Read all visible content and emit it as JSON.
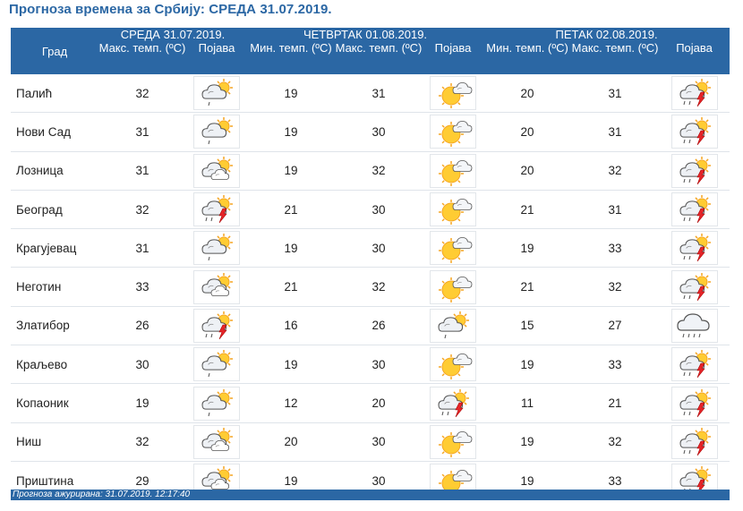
{
  "title": "Прогноза времена за Србију: СРЕДА  31.07.2019.",
  "header": {
    "city_label": "Град",
    "days": [
      {
        "label": "СРЕДА  31.07.2019.",
        "cols": [
          "Макс. темп. (ºC)",
          "Појава"
        ]
      },
      {
        "label": "ЧЕТВРТАК  01.08.2019.",
        "cols": [
          "Мин. темп. (ºC)",
          "Макс. темп. (ºC)",
          "Појава"
        ]
      },
      {
        "label": "ПЕТАК  02.08.2019.",
        "cols": [
          "Мин. темп. (ºC)",
          "Макс. темп. (ºC)",
          "Појава"
        ]
      }
    ]
  },
  "rows": [
    {
      "city": "Палић",
      "d1_max": "32",
      "d1_icon": "partly-cloudy-rain-icon",
      "d2_min": "19",
      "d2_max": "31",
      "d2_icon": "sun-cloud-icon",
      "d3_min": "20",
      "d3_max": "31",
      "d3_icon": "thunderstorm-icon"
    },
    {
      "city": "Нови Сад",
      "d1_max": "31",
      "d1_icon": "partly-cloudy-rain-icon",
      "d2_min": "19",
      "d2_max": "30",
      "d2_icon": "sun-cloud-icon",
      "d3_min": "20",
      "d3_max": "31",
      "d3_icon": "thunderstorm-icon"
    },
    {
      "city": "Лозница",
      "d1_max": "31",
      "d1_icon": "partly-cloudy-icon",
      "d2_min": "19",
      "d2_max": "32",
      "d2_icon": "sun-cloud-icon",
      "d3_min": "20",
      "d3_max": "32",
      "d3_icon": "thunderstorm-icon"
    },
    {
      "city": "Београд",
      "d1_max": "32",
      "d1_icon": "thunderstorm-icon",
      "d2_min": "21",
      "d2_max": "30",
      "d2_icon": "sun-cloud-icon",
      "d3_min": "21",
      "d3_max": "31",
      "d3_icon": "thunderstorm-icon"
    },
    {
      "city": "Крагујевац",
      "d1_max": "31",
      "d1_icon": "partly-cloudy-rain-icon",
      "d2_min": "19",
      "d2_max": "30",
      "d2_icon": "sun-cloud-icon",
      "d3_min": "19",
      "d3_max": "33",
      "d3_icon": "thunderstorm-icon"
    },
    {
      "city": "Неготин",
      "d1_max": "33",
      "d1_icon": "partly-cloudy-icon",
      "d2_min": "21",
      "d2_max": "32",
      "d2_icon": "sun-cloud-icon",
      "d3_min": "21",
      "d3_max": "32",
      "d3_icon": "thunderstorm-icon"
    },
    {
      "city": "Златибор",
      "d1_max": "26",
      "d1_icon": "thunderstorm-icon",
      "d2_min": "16",
      "d2_max": "26",
      "d2_icon": "partly-cloudy-rain-icon",
      "d3_min": "15",
      "d3_max": "27",
      "d3_icon": "rain-cloud-icon"
    },
    {
      "city": "Краљево",
      "d1_max": "30",
      "d1_icon": "partly-cloudy-rain-icon",
      "d2_min": "19",
      "d2_max": "30",
      "d2_icon": "sun-cloud-icon",
      "d3_min": "19",
      "d3_max": "33",
      "d3_icon": "thunderstorm-icon"
    },
    {
      "city": "Копаоник",
      "d1_max": "19",
      "d1_icon": "partly-cloudy-rain-icon",
      "d2_min": "12",
      "d2_max": "20",
      "d2_icon": "thunderstorm-icon",
      "d3_min": "11",
      "d3_max": "21",
      "d3_icon": "thunderstorm-icon"
    },
    {
      "city": "Ниш",
      "d1_max": "32",
      "d1_icon": "partly-cloudy-icon",
      "d2_min": "20",
      "d2_max": "30",
      "d2_icon": "sun-cloud-icon",
      "d3_min": "19",
      "d3_max": "32",
      "d3_icon": "thunderstorm-icon"
    },
    {
      "city": "Приштина",
      "d1_max": "29",
      "d1_icon": "partly-cloudy-icon",
      "d2_min": "19",
      "d2_max": "30",
      "d2_icon": "sun-cloud-icon",
      "d3_min": "19",
      "d3_max": "33",
      "d3_icon": "thunderstorm-icon"
    }
  ],
  "footer": "Прогноза ажурирана:   31.07.2019. 12:17:40",
  "colors": {
    "header_bg": "#2b67a4",
    "title": "#2b67a4",
    "sun": "#f5a623",
    "bolt": "#e8262a"
  }
}
